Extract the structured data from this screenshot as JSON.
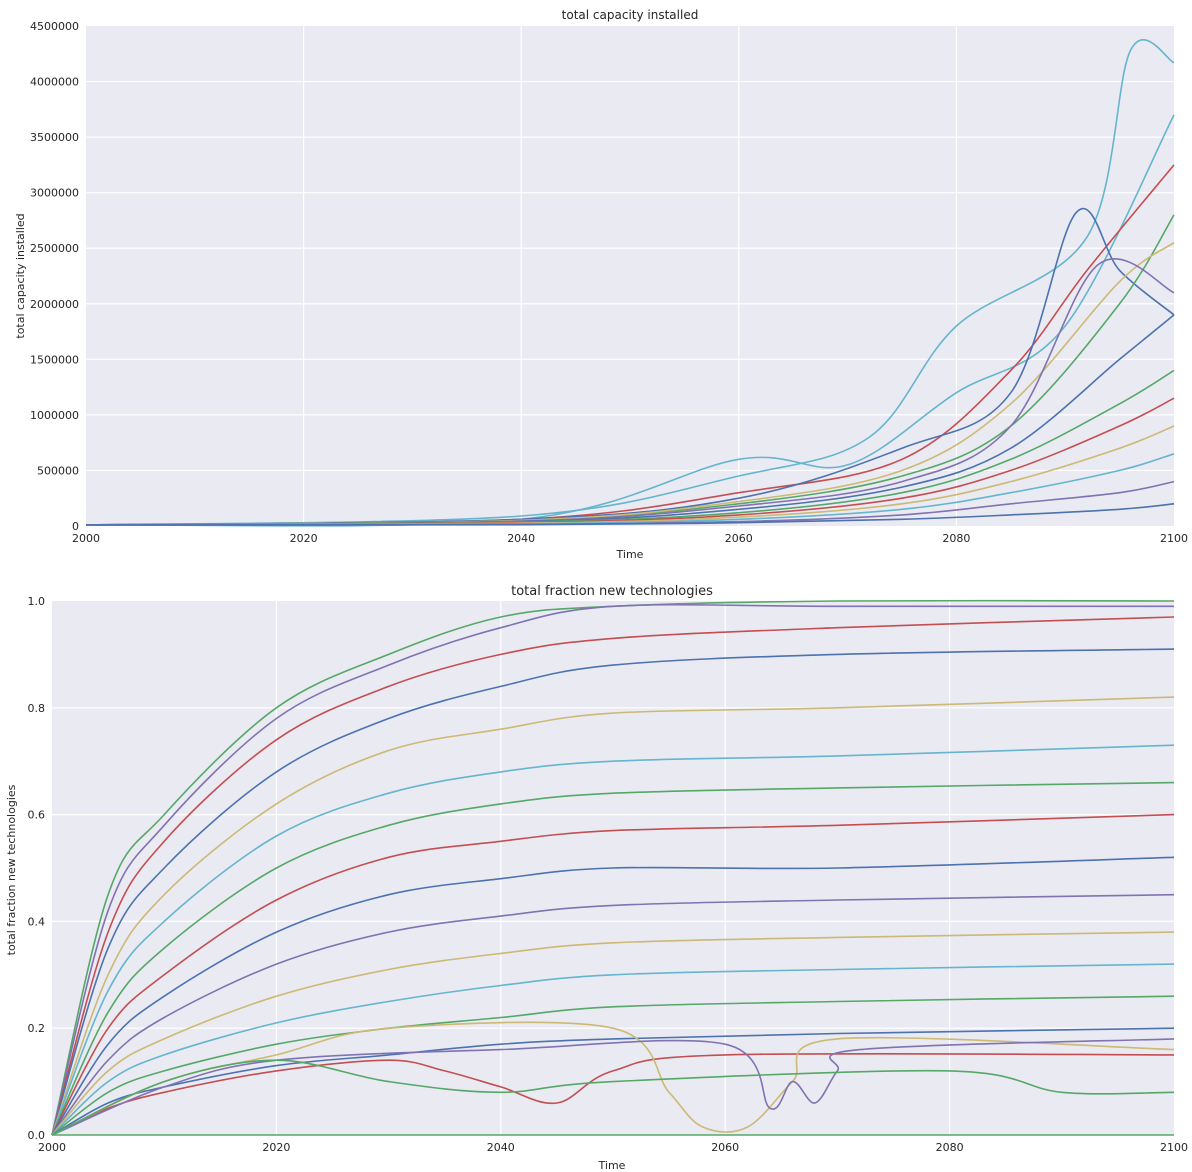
{
  "chart_data": [
    {
      "type": "line",
      "title": "total capacity installed",
      "xlabel": "Time",
      "ylabel": "total capacity installed",
      "xlim": [
        2000,
        2100
      ],
      "ylim": [
        0,
        4500000
      ],
      "xticks": [
        2000,
        2020,
        2040,
        2060,
        2080,
        2100
      ],
      "yticks": [
        0,
        500000,
        1000000,
        1500000,
        2000000,
        2500000,
        3000000,
        3500000,
        4000000,
        4500000
      ],
      "xtick_labels": [
        "2000",
        "2020",
        "2040",
        "2060",
        "2080",
        "2100"
      ],
      "ytick_labels": [
        "0",
        "500000",
        "1000000",
        "1500000",
        "2000000",
        "2500000",
        "3000000",
        "3500000",
        "4000000",
        "4500000"
      ],
      "grid": true,
      "colors": [
        "#4c72b0",
        "#55a868",
        "#c44e52",
        "#8172b2",
        "#ccb974",
        "#64b5cd"
      ],
      "series": [
        {
          "color": "#64b5cd",
          "x": [
            2000,
            2040,
            2060,
            2072,
            2080,
            2092,
            2096,
            2100
          ],
          "values": [
            10000,
            90000,
            450000,
            800000,
            1800000,
            2600000,
            4280000,
            4170000
          ]
        },
        {
          "color": "#64b5cd",
          "x": [
            2000,
            2040,
            2060,
            2070,
            2080,
            2090,
            2100
          ],
          "values": [
            10000,
            60000,
            600000,
            550000,
            1200000,
            1800000,
            3700000
          ]
        },
        {
          "color": "#c44e52",
          "x": [
            2000,
            2040,
            2060,
            2075,
            2085,
            2092,
            2100
          ],
          "values": [
            10000,
            60000,
            300000,
            600000,
            1400000,
            2300000,
            3250000
          ]
        },
        {
          "color": "#4c72b0",
          "x": [
            2000,
            2040,
            2060,
            2075,
            2085,
            2091,
            2095,
            2100
          ],
          "values": [
            10000,
            60000,
            250000,
            700000,
            1200000,
            2820000,
            2300000,
            1900000
          ]
        },
        {
          "color": "#55a868",
          "x": [
            2000,
            2040,
            2060,
            2075,
            2085,
            2095,
            2100
          ],
          "values": [
            10000,
            50000,
            200000,
            450000,
            900000,
            2000000,
            2800000
          ]
        },
        {
          "color": "#ccb974",
          "x": [
            2000,
            2040,
            2060,
            2075,
            2085,
            2095,
            2100
          ],
          "values": [
            10000,
            50000,
            220000,
            500000,
            1100000,
            2200000,
            2550000
          ]
        },
        {
          "color": "#8172b2",
          "x": [
            2000,
            2040,
            2060,
            2075,
            2085,
            2093,
            2100
          ],
          "values": [
            10000,
            45000,
            180000,
            400000,
            900000,
            2350000,
            2100000
          ]
        },
        {
          "color": "#4c72b0",
          "x": [
            2000,
            2040,
            2060,
            2075,
            2085,
            2095,
            2100
          ],
          "values": [
            10000,
            40000,
            150000,
            350000,
            700000,
            1500000,
            1900000
          ]
        },
        {
          "color": "#55a868",
          "x": [
            2000,
            2040,
            2060,
            2075,
            2085,
            2095,
            2100
          ],
          "values": [
            10000,
            35000,
            120000,
            300000,
            600000,
            1100000,
            1400000
          ]
        },
        {
          "color": "#c44e52",
          "x": [
            2000,
            2040,
            2060,
            2075,
            2085,
            2095,
            2100
          ],
          "values": [
            10000,
            30000,
            100000,
            250000,
            500000,
            900000,
            1150000
          ]
        },
        {
          "color": "#ccb974",
          "x": [
            2000,
            2040,
            2060,
            2075,
            2085,
            2095,
            2100
          ],
          "values": [
            10000,
            25000,
            80000,
            200000,
            400000,
            700000,
            900000
          ]
        },
        {
          "color": "#64b5cd",
          "x": [
            2000,
            2040,
            2060,
            2075,
            2085,
            2095,
            2100
          ],
          "values": [
            10000,
            20000,
            60000,
            150000,
            300000,
            500000,
            650000
          ]
        },
        {
          "color": "#8172b2",
          "x": [
            2000,
            2040,
            2060,
            2075,
            2085,
            2095,
            2100
          ],
          "values": [
            10000,
            15000,
            40000,
            100000,
            200000,
            300000,
            400000
          ]
        },
        {
          "color": "#4c72b0",
          "x": [
            2000,
            2040,
            2060,
            2075,
            2085,
            2095,
            2100
          ],
          "values": [
            10000,
            12000,
            30000,
            60000,
            100000,
            150000,
            200000
          ]
        }
      ]
    },
    {
      "type": "line",
      "title": "total fraction new technologies",
      "xlabel": "Time",
      "ylabel": "total fraction new technologies",
      "xlim": [
        2000,
        2100
      ],
      "ylim": [
        0.0,
        1.0
      ],
      "xticks": [
        2000,
        2020,
        2040,
        2060,
        2080,
        2100
      ],
      "yticks": [
        0.0,
        0.2,
        0.4,
        0.6,
        0.8,
        1.0
      ],
      "xtick_labels": [
        "2000",
        "2020",
        "2040",
        "2060",
        "2080",
        "2100"
      ],
      "ytick_labels": [
        "0.0",
        "0.2",
        "0.4",
        "0.6",
        "0.8",
        "1.0"
      ],
      "grid": true,
      "colors": [
        "#4c72b0",
        "#55a868",
        "#c44e52",
        "#8172b2",
        "#ccb974",
        "#64b5cd"
      ],
      "series": [
        {
          "color": "#55a868",
          "x": [
            2000,
            2005,
            2010,
            2020,
            2030,
            2040,
            2050,
            2070,
            2100
          ],
          "values": [
            0.0,
            0.45,
            0.6,
            0.8,
            0.9,
            0.97,
            0.99,
            1.0,
            1.0
          ]
        },
        {
          "color": "#8172b2",
          "x": [
            2000,
            2005,
            2010,
            2020,
            2030,
            2040,
            2050,
            2070,
            2100
          ],
          "values": [
            0.0,
            0.42,
            0.58,
            0.78,
            0.88,
            0.95,
            0.99,
            0.99,
            0.99
          ]
        },
        {
          "color": "#c44e52",
          "x": [
            2000,
            2005,
            2010,
            2020,
            2030,
            2040,
            2050,
            2070,
            2100
          ],
          "values": [
            0.0,
            0.38,
            0.55,
            0.74,
            0.84,
            0.9,
            0.93,
            0.95,
            0.97
          ]
        },
        {
          "color": "#4c72b0",
          "x": [
            2000,
            2005,
            2010,
            2020,
            2030,
            2040,
            2050,
            2070,
            2100
          ],
          "values": [
            0.0,
            0.35,
            0.5,
            0.68,
            0.78,
            0.84,
            0.88,
            0.9,
            0.91
          ]
        },
        {
          "color": "#ccb974",
          "x": [
            2000,
            2005,
            2010,
            2020,
            2030,
            2040,
            2050,
            2070,
            2100
          ],
          "values": [
            0.0,
            0.3,
            0.45,
            0.62,
            0.72,
            0.76,
            0.79,
            0.8,
            0.82
          ]
        },
        {
          "color": "#64b5cd",
          "x": [
            2000,
            2005,
            2010,
            2020,
            2030,
            2040,
            2050,
            2070,
            2100
          ],
          "values": [
            0.0,
            0.27,
            0.4,
            0.56,
            0.64,
            0.68,
            0.7,
            0.71,
            0.73
          ]
        },
        {
          "color": "#55a868",
          "x": [
            2000,
            2005,
            2010,
            2020,
            2030,
            2040,
            2050,
            2070,
            2100
          ],
          "values": [
            0.0,
            0.23,
            0.35,
            0.5,
            0.58,
            0.62,
            0.64,
            0.65,
            0.66
          ]
        },
        {
          "color": "#c44e52",
          "x": [
            2000,
            2005,
            2010,
            2020,
            2030,
            2040,
            2050,
            2070,
            2100
          ],
          "values": [
            0.0,
            0.2,
            0.3,
            0.44,
            0.52,
            0.55,
            0.57,
            0.58,
            0.6
          ]
        },
        {
          "color": "#4c72b0",
          "x": [
            2000,
            2005,
            2010,
            2020,
            2030,
            2040,
            2050,
            2070,
            2100
          ],
          "values": [
            0.0,
            0.17,
            0.26,
            0.38,
            0.45,
            0.48,
            0.5,
            0.5,
            0.52
          ]
        },
        {
          "color": "#8172b2",
          "x": [
            2000,
            2005,
            2010,
            2020,
            2030,
            2040,
            2050,
            2070,
            2100
          ],
          "values": [
            0.0,
            0.14,
            0.22,
            0.32,
            0.38,
            0.41,
            0.43,
            0.44,
            0.45
          ]
        },
        {
          "color": "#ccb974",
          "x": [
            2000,
            2005,
            2010,
            2020,
            2030,
            2040,
            2050,
            2070,
            2100
          ],
          "values": [
            0.0,
            0.12,
            0.18,
            0.26,
            0.31,
            0.34,
            0.36,
            0.37,
            0.38
          ]
        },
        {
          "color": "#64b5cd",
          "x": [
            2000,
            2005,
            2010,
            2020,
            2030,
            2040,
            2050,
            2070,
            2100
          ],
          "values": [
            0.0,
            0.1,
            0.15,
            0.21,
            0.25,
            0.28,
            0.3,
            0.31,
            0.32
          ]
        },
        {
          "color": "#55a868",
          "x": [
            2000,
            2005,
            2010,
            2020,
            2030,
            2040,
            2050,
            2070,
            2100
          ],
          "values": [
            0.0,
            0.08,
            0.12,
            0.17,
            0.2,
            0.22,
            0.24,
            0.25,
            0.26
          ]
        },
        {
          "color": "#4c72b0",
          "x": [
            2000,
            2005,
            2010,
            2020,
            2030,
            2040,
            2050,
            2070,
            2100
          ],
          "values": [
            0.0,
            0.06,
            0.09,
            0.13,
            0.15,
            0.17,
            0.18,
            0.19,
            0.2
          ]
        },
        {
          "color": "#c44e52",
          "x": [
            2000,
            2005,
            2010,
            2020,
            2030,
            2035,
            2040,
            2045,
            2050,
            2060,
            2100
          ],
          "values": [
            0.0,
            0.05,
            0.08,
            0.12,
            0.14,
            0.12,
            0.09,
            0.06,
            0.12,
            0.15,
            0.15
          ]
        },
        {
          "color": "#ccb974",
          "x": [
            2000,
            2010,
            2020,
            2030,
            2050,
            2055,
            2058,
            2062,
            2066,
            2070,
            2100
          ],
          "values": [
            0.0,
            0.1,
            0.15,
            0.2,
            0.2,
            0.08,
            0.015,
            0.015,
            0.1,
            0.18,
            0.16
          ]
        },
        {
          "color": "#8172b2",
          "x": [
            2000,
            2010,
            2020,
            2040,
            2060,
            2064,
            2066,
            2068,
            2070,
            2072,
            2100
          ],
          "values": [
            0.0,
            0.09,
            0.14,
            0.16,
            0.17,
            0.05,
            0.1,
            0.06,
            0.12,
            0.16,
            0.18
          ]
        },
        {
          "color": "#55a868",
          "x": [
            2000,
            2010,
            2020,
            2030,
            2040,
            2050,
            2080,
            2090,
            2100
          ],
          "values": [
            0.0,
            0.1,
            0.14,
            0.1,
            0.08,
            0.1,
            0.12,
            0.08,
            0.08
          ]
        },
        {
          "color": "#55a868",
          "x": [
            2000,
            2100
          ],
          "values": [
            0.0,
            0.0
          ]
        }
      ]
    }
  ]
}
